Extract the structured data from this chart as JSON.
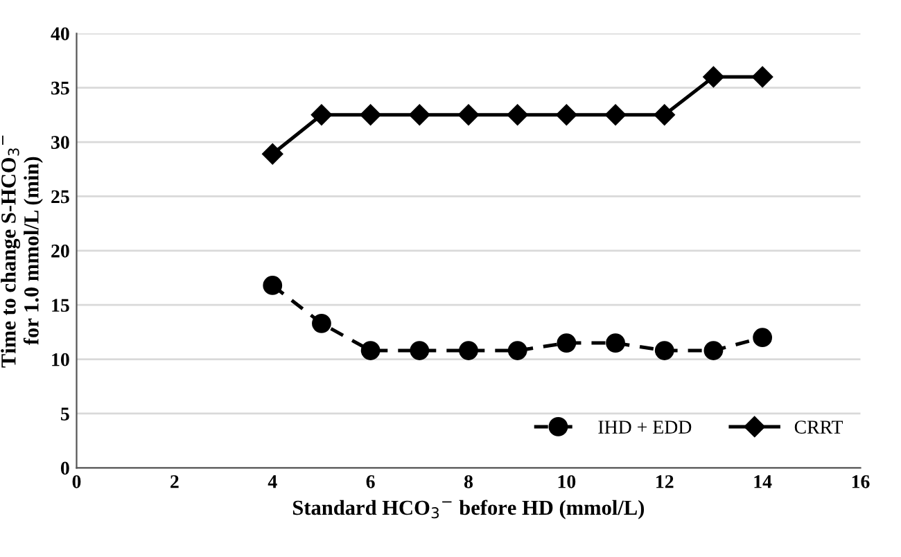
{
  "chart_data": {
    "type": "line",
    "xlabel": "Standard HCO$_{3}$$^{−}$ before HD (mmol/L)",
    "ylabel": "Time to change S-HCO$_{3}$$^{−}$\nfor 1.0 mmol/L (min)",
    "x": [
      4,
      5,
      6,
      7,
      8,
      9,
      10,
      11,
      12,
      13,
      14
    ],
    "series": [
      {
        "name": "IHD + EDD",
        "color": "#000000",
        "marker": "circle",
        "line_style": "dashed",
        "values": [
          16.8,
          13.3,
          10.8,
          10.8,
          10.8,
          10.8,
          11.5,
          11.5,
          10.8,
          10.8,
          12
        ]
      },
      {
        "name": "CRRT",
        "color": "#000000",
        "marker": "diamond",
        "line_style": "solid",
        "values": [
          28.9,
          32.5,
          32.5,
          32.5,
          32.5,
          32.5,
          32.5,
          32.5,
          32.5,
          36,
          36
        ]
      }
    ],
    "xlim": [
      0,
      16
    ],
    "xticks": [
      0,
      2,
      4,
      6,
      8,
      10,
      12,
      14,
      16
    ],
    "ylim": [
      0,
      40
    ],
    "yticks": [
      0,
      5,
      10,
      15,
      20,
      25,
      30,
      35,
      40
    ],
    "grid": "y",
    "legend": "bottom right"
  }
}
